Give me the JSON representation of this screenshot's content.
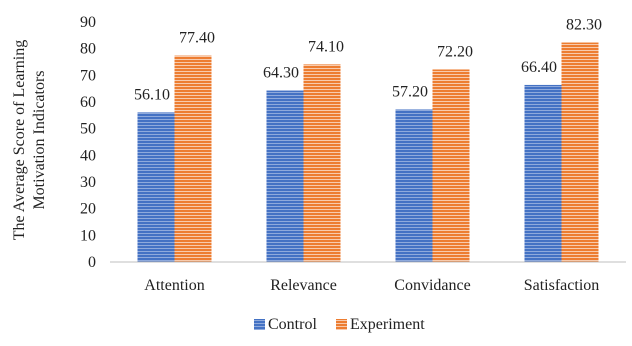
{
  "chart_data": {
    "type": "bar",
    "categories": [
      "Attention",
      "Relevance",
      "Convidance",
      "Satisfaction"
    ],
    "series": [
      {
        "name": "Control",
        "values": [
          56.1,
          64.3,
          57.2,
          66.4
        ],
        "labels": [
          "56.10",
          "64.30",
          "57.20",
          "66.40"
        ],
        "color": "#4472C4",
        "stripe": "#8FAADC"
      },
      {
        "name": "Experiment",
        "values": [
          77.4,
          74.1,
          72.2,
          82.3
        ],
        "labels": [
          "77.40",
          "74.10",
          "72.20",
          "82.30"
        ],
        "color": "#ED7D31",
        "stripe": "#F8CBAD"
      }
    ],
    "ylabel_lines": [
      "The Average  Score of Learning",
      "Motivation Indicators"
    ],
    "ylim": [
      0,
      90
    ],
    "yticks": [
      0,
      10,
      20,
      30,
      40,
      50,
      60,
      70,
      80,
      90
    ],
    "grid": false,
    "legend": "bottom"
  }
}
